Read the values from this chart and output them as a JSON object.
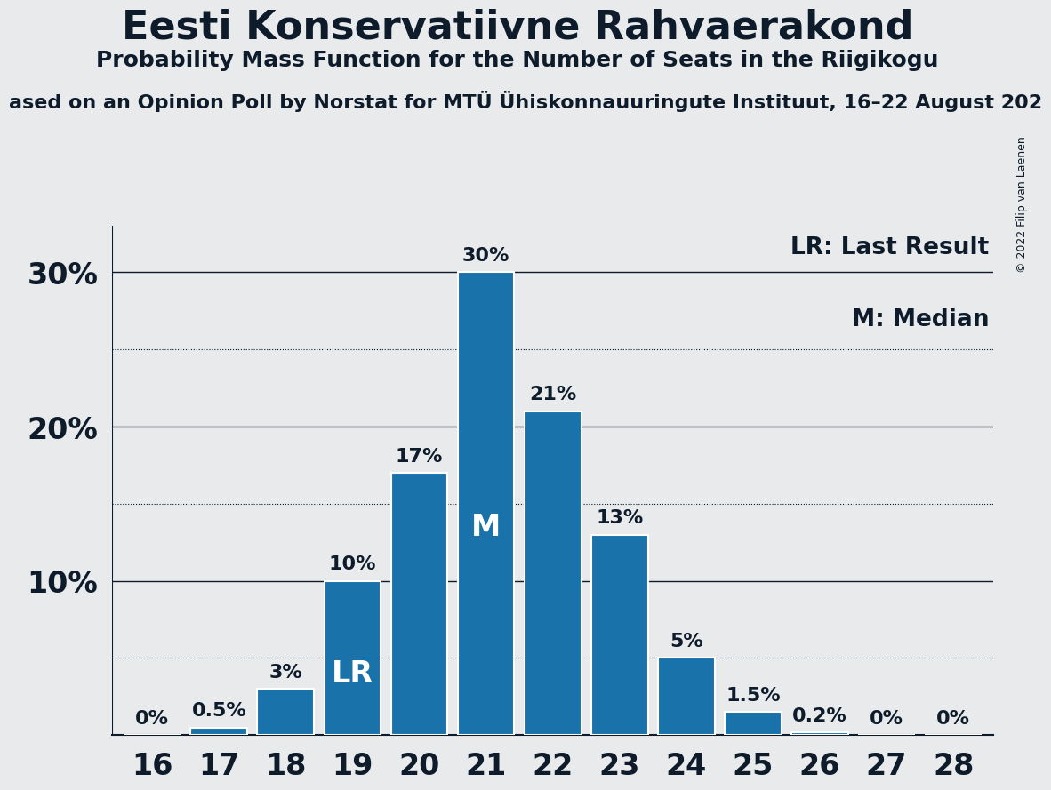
{
  "title": "Eesti Konservatiivne Rahvaerakond",
  "subtitle": "Probability Mass Function for the Number of Seats in the Riigikogu",
  "source_line": "ased on an Opinion Poll by Norstat for MTÜ Ühiskonnauuringute Instituut, 16–22 August 202",
  "copyright": "© 2022 Filip van Laenen",
  "seats": [
    16,
    17,
    18,
    19,
    20,
    21,
    22,
    23,
    24,
    25,
    26,
    27,
    28
  ],
  "probabilities": [
    0.0,
    0.5,
    3.0,
    10.0,
    17.0,
    30.0,
    21.0,
    13.0,
    5.0,
    1.5,
    0.2,
    0.0,
    0.0
  ],
  "bar_color": "#1a72aa",
  "bar_edge_color": "#ffffff",
  "background_color": "#e8eaec",
  "text_color": "#0d1b2a",
  "LR_seat": 19,
  "M_seat": 21,
  "yticks_major": [
    10,
    20,
    30
  ],
  "ytick_dotted": [
    5,
    15,
    25
  ],
  "legend_LR": "LR: Last Result",
  "legend_M": "M: Median",
  "ylim": [
    0,
    33
  ]
}
